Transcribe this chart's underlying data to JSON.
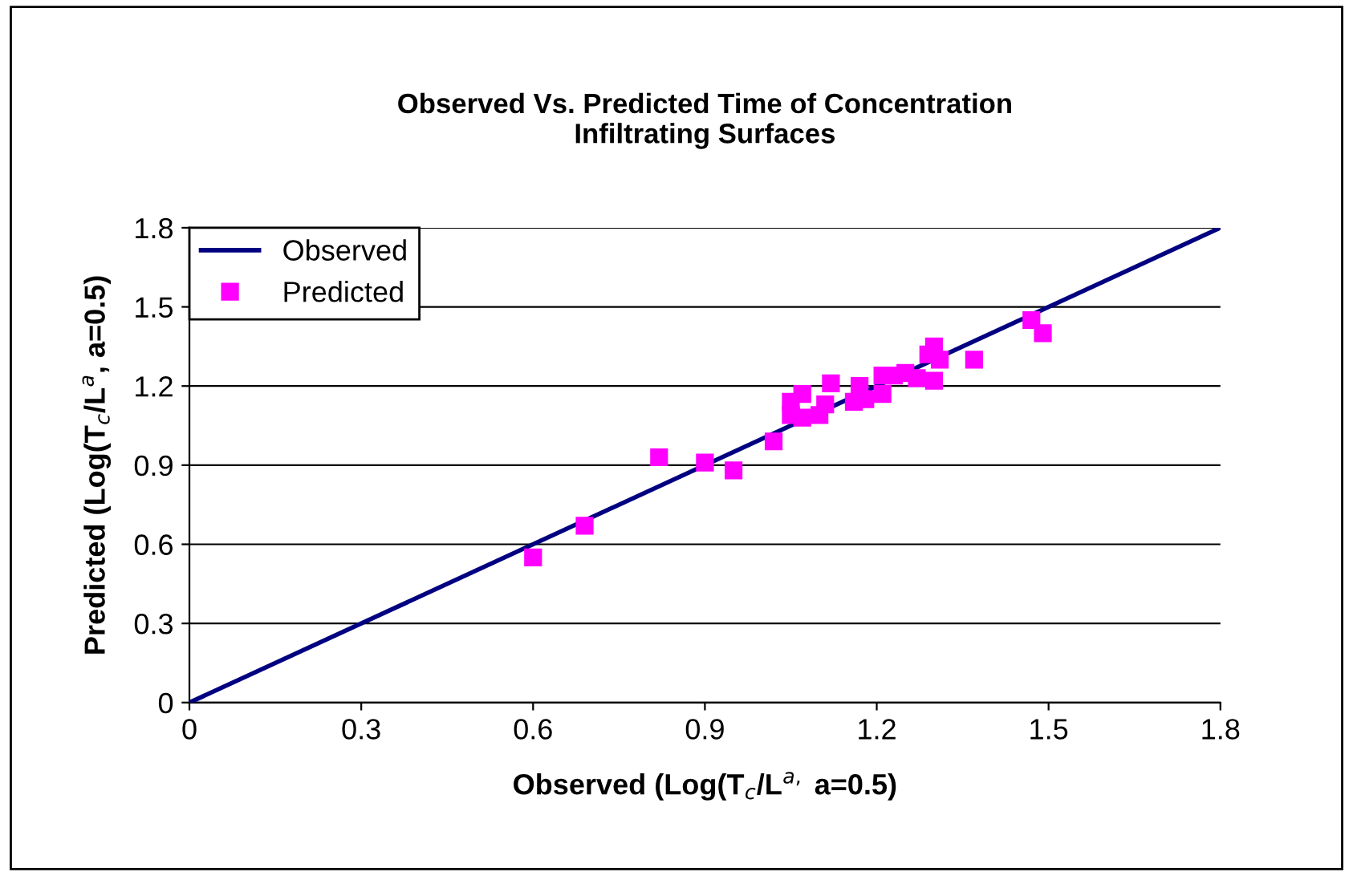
{
  "chart_data": {
    "type": "scatter",
    "title": "Observed Vs. Predicted Time of Concentration\nInfiltrating Surfaces",
    "xlabel": "Observed (Log(T$_{c}$/L$^{a,}$ a=0.5)",
    "ylabel": "Predicted (Log(T$_{c}$/L$^{a}$, a=0.5)",
    "series": [
      {
        "name": "Observed",
        "type": "line",
        "color": "#000080",
        "x": [
          0,
          1.8
        ],
        "values": [
          0,
          1.8
        ],
        "marker": "none"
      },
      {
        "name": "Predicted",
        "color": "#ff00ff",
        "marker": "square",
        "x": [
          0.6,
          0.69,
          0.82,
          0.9,
          0.95,
          1.02,
          1.05,
          1.05,
          1.07,
          1.07,
          1.1,
          1.11,
          1.12,
          1.16,
          1.17,
          1.18,
          1.21,
          1.21,
          1.23,
          1.25,
          1.27,
          1.29,
          1.3,
          1.3,
          1.31,
          1.37,
          1.47,
          1.49
        ],
        "values": [
          0.55,
          0.67,
          0.93,
          0.91,
          0.88,
          0.99,
          1.14,
          1.09,
          1.17,
          1.08,
          1.09,
          1.13,
          1.21,
          1.14,
          1.2,
          1.15,
          1.24,
          1.17,
          1.24,
          1.25,
          1.23,
          1.32,
          1.35,
          1.22,
          1.3,
          1.3,
          1.45,
          1.4
        ]
      }
    ],
    "xlim": [
      0,
      1.8
    ],
    "ylim": [
      0,
      1.8
    ],
    "xticks": [
      0,
      0.3,
      0.6,
      0.9,
      1.2,
      1.5,
      1.8
    ],
    "yticks": [
      0,
      0.3,
      0.6,
      0.9,
      1.2,
      1.5,
      1.8
    ],
    "grid": "y",
    "legend": "top left"
  }
}
